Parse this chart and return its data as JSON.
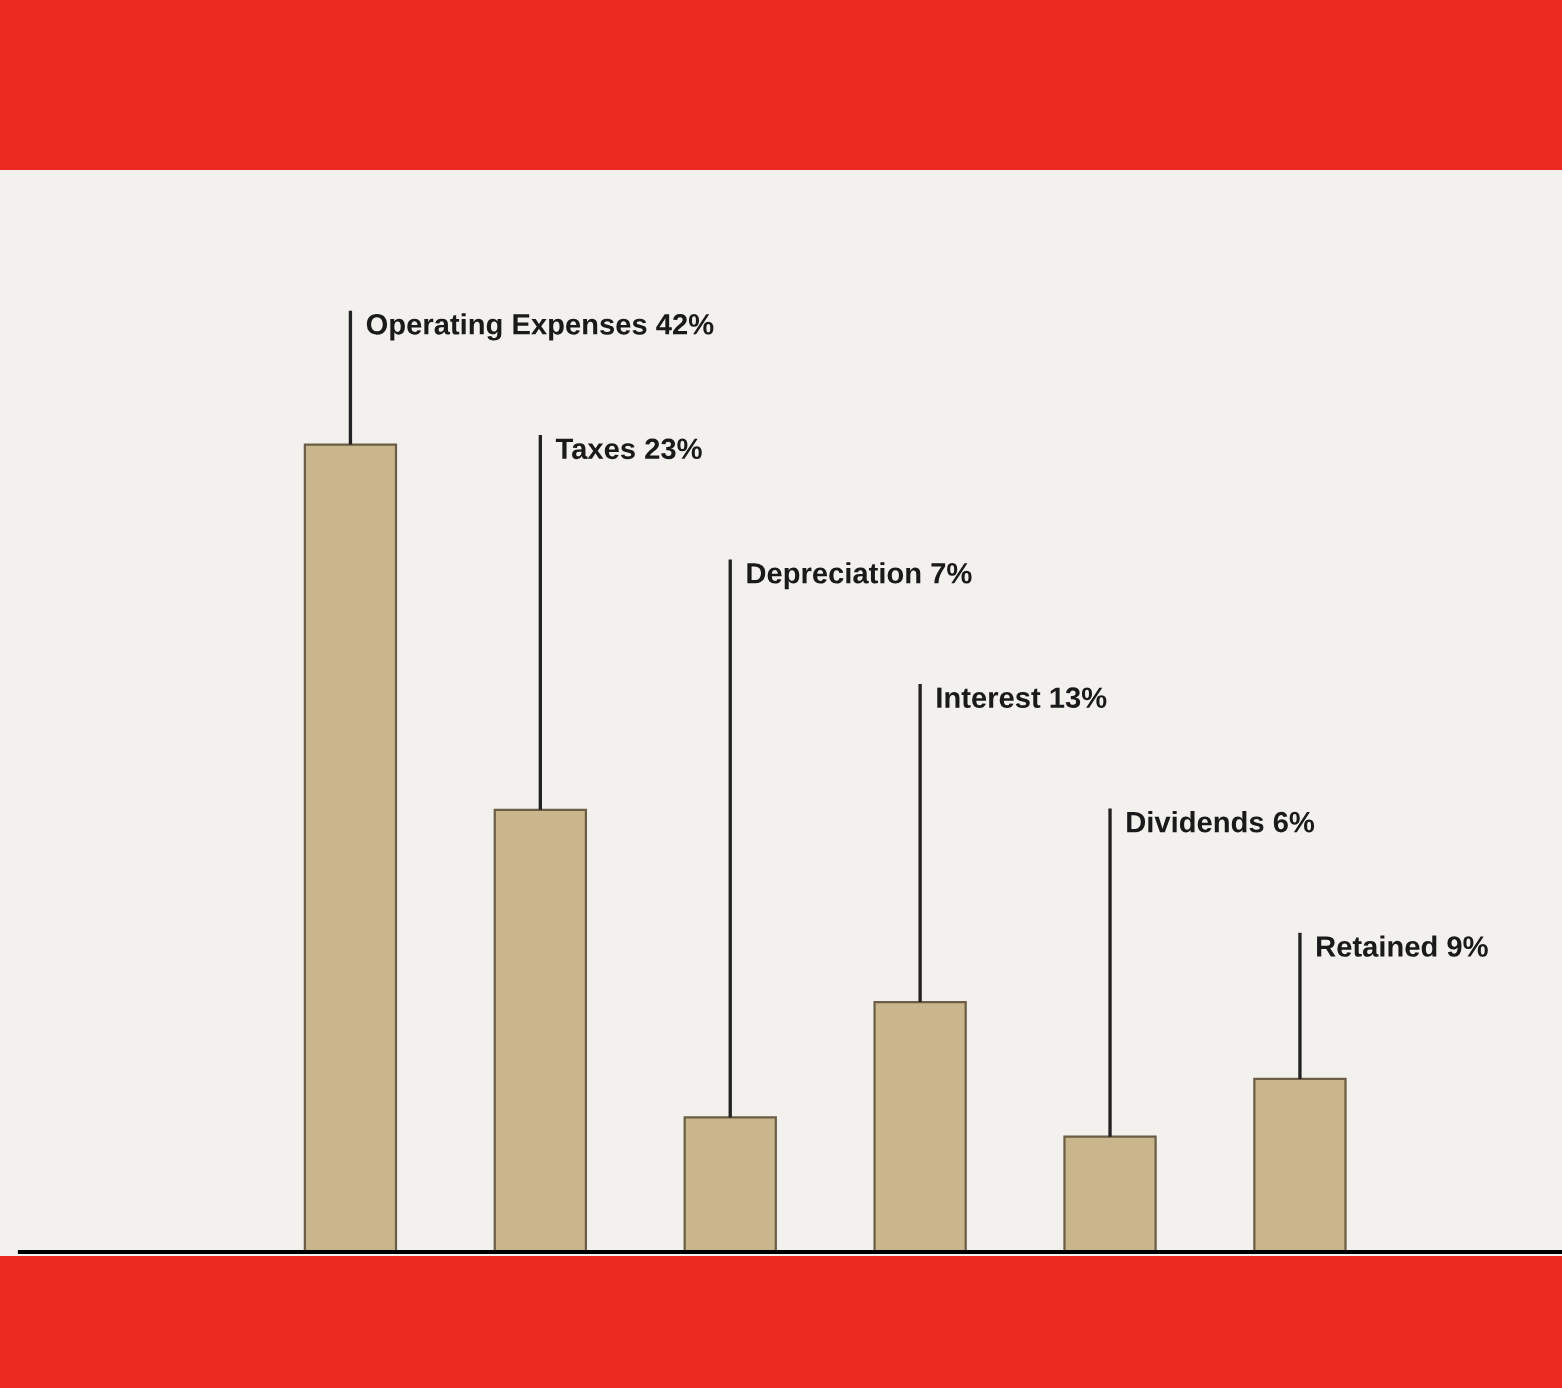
{
  "chart_data": {
    "type": "bar",
    "categories": [
      null,
      null,
      null,
      null,
      null,
      null
    ],
    "values": [
      42,
      23,
      7,
      13,
      6,
      9
    ],
    "value_labels": [
      "Operating Expenses 42%",
      "Taxes 23%",
      "Depreciation 7%",
      "Interest 13%",
      "Dividends 6%",
      "Retained 9%"
    ],
    "color": "#c9b68c"
  }
}
